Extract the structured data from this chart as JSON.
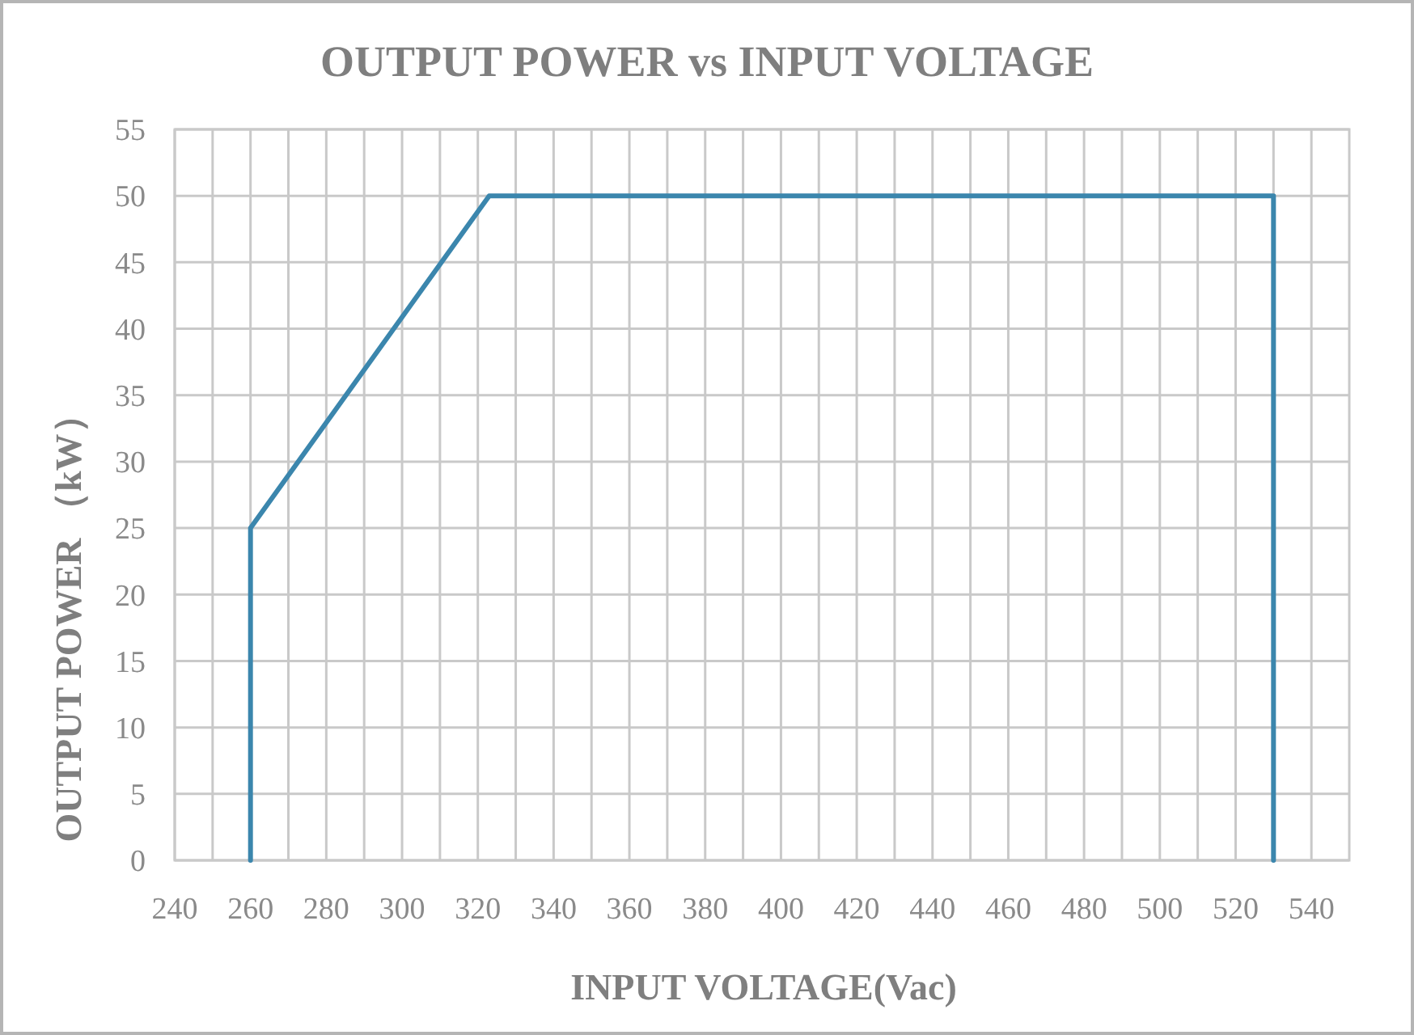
{
  "chart_data": {
    "type": "line",
    "title": "OUTPUT POWER vs INPUT VOLTAGE",
    "xlabel": "INPUT VOLTAGE(Vac)",
    "ylabel": "OUTPUT POWER （kW）",
    "x": [
      260,
      260,
      323,
      530,
      530
    ],
    "series": [
      {
        "color": "#3b86ad",
        "values": [
          0,
          25,
          50,
          50,
          0
        ]
      }
    ],
    "xlim": [
      240,
      550
    ],
    "xticks": [
      240,
      {
        "value": 250,
        "label": null
      },
      260,
      {
        "value": 270,
        "label": null
      },
      280,
      {
        "value": 290,
        "label": null
      },
      300,
      {
        "value": 310,
        "label": null
      },
      320,
      {
        "value": 330,
        "label": null
      },
      340,
      {
        "value": 350,
        "label": null
      },
      360,
      {
        "value": 370,
        "label": null
      },
      380,
      {
        "value": 390,
        "label": null
      },
      400,
      {
        "value": 410,
        "label": null
      },
      420,
      {
        "value": 430,
        "label": null
      },
      440,
      {
        "value": 450,
        "label": null
      },
      460,
      {
        "value": 470,
        "label": null
      },
      480,
      {
        "value": 490,
        "label": null
      },
      500,
      {
        "value": 510,
        "label": null
      },
      520,
      {
        "value": 530,
        "label": null
      },
      540
    ],
    "ylim": [
      0,
      55
    ],
    "yticks": [
      0,
      5,
      10,
      15,
      20,
      25,
      30,
      35,
      40,
      45,
      50,
      55
    ],
    "grid": true,
    "line_style": "solid"
  }
}
